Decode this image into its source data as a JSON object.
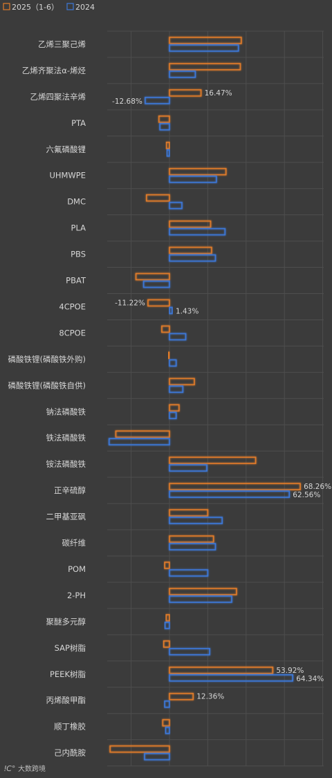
{
  "chart_data": {
    "type": "bar",
    "orientation": "horizontal",
    "categories": [
      "乙烯三聚己烯",
      "乙烯齐聚法α-烯烃",
      "乙烯四聚法辛烯",
      "PTA",
      "六氟磷酸锂",
      "UHMWPE",
      "DMC",
      "PLA",
      "PBS",
      "PBAT",
      "4CPOE",
      "8CPOE",
      "磷酸铁锂(磷酸铁外购)",
      "磷酸铁锂(磷酸铁自供)",
      "钠法磷酸铁",
      "铁法磷酸铁",
      "铵法磷酸铁",
      "正辛硫醇",
      "二甲基亚砜",
      "碳纤维",
      "POM",
      "2-PH",
      "聚醚多元醇",
      "SAP树脂",
      "PEEK树脂",
      "丙烯酸甲酯",
      "顺丁橡胶",
      "己内酰胺"
    ],
    "series": [
      {
        "name": "2025（1-6）",
        "color": "#e07b2a",
        "values": [
          37.5,
          37.0,
          16.47,
          -5.5,
          -1.6,
          29.5,
          -12.0,
          21.5,
          22.0,
          -17.5,
          -11.22,
          -4.0,
          -0.5,
          13.0,
          5.0,
          -28.0,
          45.0,
          68.26,
          20.0,
          23.0,
          -2.5,
          35.0,
          -1.7,
          -3.0,
          53.92,
          12.36,
          -3.5,
          -31.0
        ]
      },
      {
        "name": "2024",
        "color": "#3d78d8",
        "values": [
          36.0,
          13.5,
          -12.68,
          -5.0,
          -1.3,
          24.5,
          6.5,
          29.0,
          24.0,
          -13.5,
          1.43,
          8.5,
          3.5,
          7.0,
          3.5,
          -31.5,
          19.5,
          62.56,
          27.5,
          24.0,
          20.0,
          32.5,
          -2.3,
          21.0,
          64.34,
          -2.5,
          -2.0,
          -13.0
        ]
      }
    ],
    "data_labels": [
      {
        "category": "乙烯四聚法辛烯",
        "series": 0,
        "text": "16.47%"
      },
      {
        "category": "乙烯四聚法辛烯",
        "series": 1,
        "text": "-12.68%"
      },
      {
        "category": "4CPOE",
        "series": 0,
        "text": "-11.22%"
      },
      {
        "category": "4CPOE",
        "series": 1,
        "text": "1.43%"
      },
      {
        "category": "正辛硫醇",
        "series": 0,
        "text": "68.26%"
      },
      {
        "category": "正辛硫醇",
        "series": 1,
        "text": "62.56%"
      },
      {
        "category": "PEEK树脂",
        "series": 0,
        "text": "53.92%"
      },
      {
        "category": "PEEK树脂",
        "series": 1,
        "text": "64.34%"
      },
      {
        "category": "丙烯酸甲酯",
        "series": 0,
        "text": "12.36%"
      }
    ],
    "xlim": [
      -35,
      80
    ],
    "grid": true,
    "legend": "top-left"
  },
  "watermark": "大数跨境"
}
